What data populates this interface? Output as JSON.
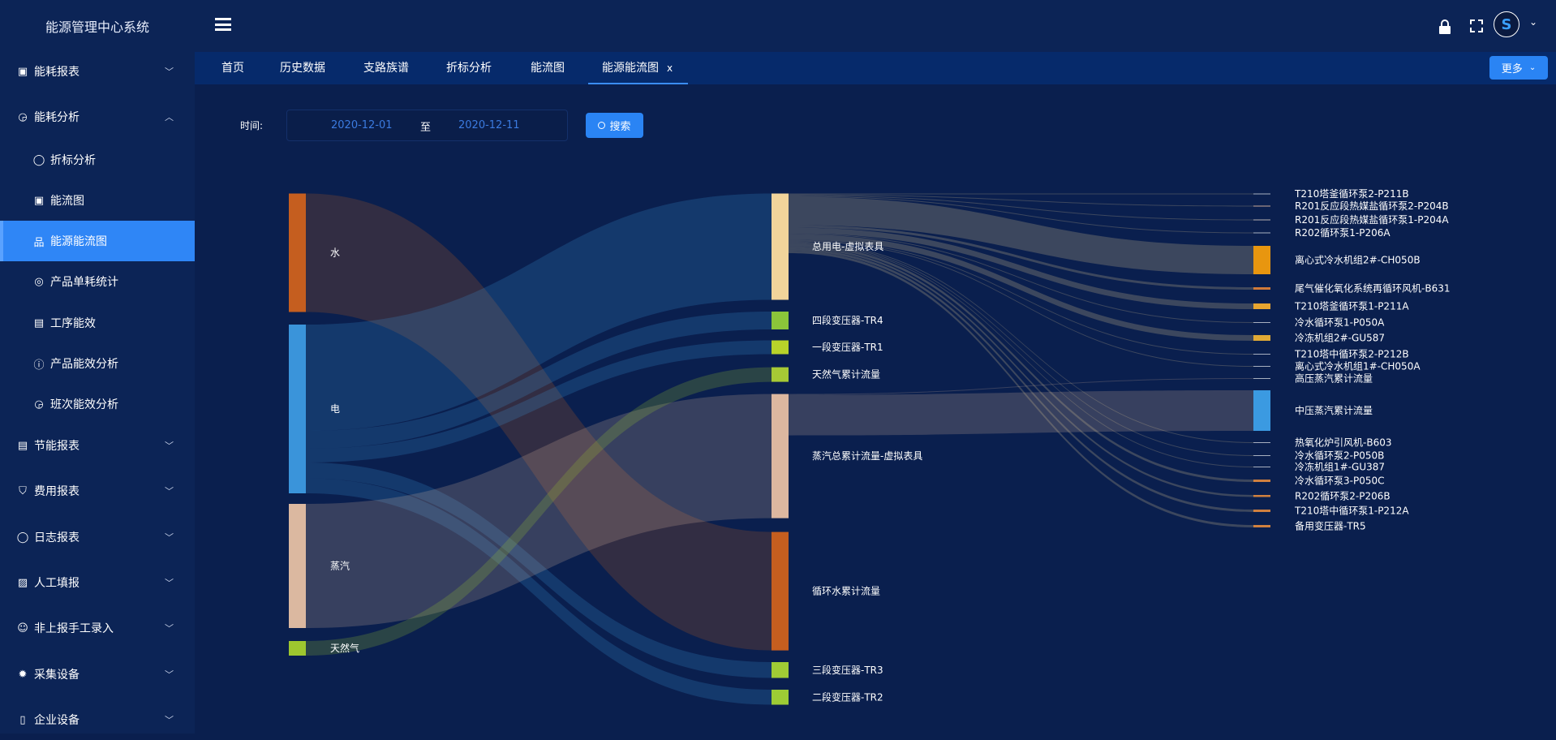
{
  "app_title": "能源管理中心系统",
  "sidebar": {
    "items": [
      {
        "label": "能耗报表",
        "icon": "report-icon",
        "expanded": false
      },
      {
        "label": "能耗分析",
        "icon": "analysis-icon",
        "expanded": true
      },
      {
        "label": "折标分析",
        "icon": "chat-icon"
      },
      {
        "label": "能流图",
        "icon": "calendar-icon"
      },
      {
        "label": "能源能流图",
        "icon": "hierarchy-icon",
        "active": true
      },
      {
        "label": "产品单耗统计",
        "icon": "location-icon"
      },
      {
        "label": "工序能效",
        "icon": "message-icon"
      },
      {
        "label": "产品能效分析",
        "icon": "info-icon"
      },
      {
        "label": "班次能效分析",
        "icon": "analysis-icon"
      },
      {
        "label": "节能报表",
        "icon": "message-icon",
        "expanded": false
      },
      {
        "label": "费用报表",
        "icon": "shield-icon",
        "expanded": false
      },
      {
        "label": "日志报表",
        "icon": "chat-icon",
        "expanded": false
      },
      {
        "label": "人工填报",
        "icon": "image-icon",
        "expanded": false
      },
      {
        "label": "非上报手工录入",
        "icon": "wechat-icon",
        "expanded": false
      },
      {
        "label": "采集设备",
        "icon": "gear-icon",
        "expanded": false
      },
      {
        "label": "企业设备",
        "icon": "phone-icon",
        "expanded": false
      }
    ]
  },
  "header": {
    "menu_icon": "hamburger-icon",
    "lock_icon": "lock-icon",
    "fullscreen_icon": "fullscreen-icon",
    "avatar_letter": "S"
  },
  "tabs": [
    {
      "label": "首页"
    },
    {
      "label": "历史数据"
    },
    {
      "label": "支路族谱"
    },
    {
      "label": "折标分析"
    },
    {
      "label": "能流图"
    },
    {
      "label": "能源能流图",
      "active": true,
      "closable": true
    }
  ],
  "tab_close": "x",
  "more_button": "更多",
  "filter": {
    "time_label": "时间:",
    "start": "2020-12-01",
    "separator": "至",
    "end": "2020-12-11",
    "search_label": "搜索"
  },
  "colors": {
    "accent": "#2a84f4",
    "background": "#0a1f4e"
  },
  "chart_data": {
    "type": "sankey",
    "nodes": [
      {
        "name": "水",
        "color": "#c55e1f"
      },
      {
        "name": "电",
        "color": "#3a94da"
      },
      {
        "name": "蒸汽",
        "color": "#dbb8a0"
      },
      {
        "name": "天然气",
        "color": "#9ec72f"
      },
      {
        "name": "总用电-虚拟表具",
        "color": "#f1d49b"
      },
      {
        "name": "四段变压器-TR4",
        "color": "#8bc53a"
      },
      {
        "name": "一段变压器-TR1",
        "color": "#b8d22a"
      },
      {
        "name": "天然气累计流量",
        "color": "#a6c935"
      },
      {
        "name": "蒸汽总累计流量-虚拟表具",
        "color": "#dcb7a0"
      },
      {
        "name": "循环水累计流量",
        "color": "#c55e1f"
      },
      {
        "name": "三段变压器-TR3",
        "color": "#a0cc35"
      },
      {
        "name": "二段变压器-TR2",
        "color": "#9dcc35"
      },
      {
        "name": "T210塔釜循环泵2-P211B",
        "color": "#a8b0c0"
      },
      {
        "name": "R201反应段热媒盐循环泵2-P204B",
        "color": "#c9a898"
      },
      {
        "name": "R201反应段热媒盐循环泵1-P204A",
        "color": "#b8b0b0"
      },
      {
        "name": "R202循环泵1-P206A",
        "color": "#a8b0c0"
      },
      {
        "name": "离心式冷水机组2#-CH050B",
        "color": "#e8960f"
      },
      {
        "name": "尾气催化氧化系统再循环风机-B631",
        "color": "#d07a3a"
      },
      {
        "name": "T210塔釜循环泵1-P211A",
        "color": "#e8a530"
      },
      {
        "name": "冷水循环泵1-P050A",
        "color": "#a8b0c0"
      },
      {
        "name": "冷冻机组2#-GU587",
        "color": "#e0a935"
      },
      {
        "name": "T210塔中循环泵2-P212B",
        "color": "#a8b0c0"
      },
      {
        "name": "离心式冷水机组1#-CH050A",
        "color": "#a8b0c0"
      },
      {
        "name": "高压蒸汽累计流量",
        "color": "#a8b0c0"
      },
      {
        "name": "中压蒸汽累计流量",
        "color": "#3b9ae1"
      },
      {
        "name": "热氧化炉引风机-B603",
        "color": "#a8b0c0"
      },
      {
        "name": "冷水循环泵2-P050B",
        "color": "#a8b0c0"
      },
      {
        "name": "冷冻机组1#-GU387",
        "color": "#a8b0c0"
      },
      {
        "name": "冷水循环泵3-P050C",
        "color": "#d0803f"
      },
      {
        "name": "R202循环泵2-P206B",
        "color": "#d0803f"
      },
      {
        "name": "T210塔中循环泵1-P212A",
        "color": "#d0803f"
      },
      {
        "name": "备用变压器-TR5",
        "color": "#d0803f"
      }
    ],
    "links": [
      {
        "source": "水",
        "target": "循环水累计流量",
        "value": 146
      },
      {
        "source": "电",
        "target": "总用电-虚拟表具",
        "value": 131
      },
      {
        "source": "电",
        "target": "四段变压器-TR4",
        "value": 22
      },
      {
        "source": "电",
        "target": "一段变压器-TR1",
        "value": 17
      },
      {
        "source": "电",
        "target": "三段变压器-TR3",
        "value": 19.5
      },
      {
        "source": "电",
        "target": "二段变压器-TR2",
        "value": 18.5
      },
      {
        "source": "蒸汽",
        "target": "蒸汽总累计流量-虚拟表具",
        "value": 153
      },
      {
        "source": "天然气",
        "target": "天然气累计流量",
        "value": 18
      },
      {
        "source": "总用电-虚拟表具",
        "target": "T210塔釜循环泵2-P211B",
        "value": 1
      },
      {
        "source": "总用电-虚拟表具",
        "target": "R201反应段热媒盐循环泵2-P204B",
        "value": 1
      },
      {
        "source": "总用电-虚拟表具",
        "target": "R201反应段热媒盐循环泵1-P204A",
        "value": 1
      },
      {
        "source": "总用电-虚拟表具",
        "target": "R202循环泵1-P206A",
        "value": 1
      },
      {
        "source": "总用电-虚拟表具",
        "target": "离心式冷水机组2#-CH050B",
        "value": 35
      },
      {
        "source": "总用电-虚拟表具",
        "target": "尾气催化氧化系统再循环风机-B631",
        "value": 3
      },
      {
        "source": "总用电-虚拟表具",
        "target": "T210塔釜循环泵1-P211A",
        "value": 7
      },
      {
        "source": "总用电-虚拟表具",
        "target": "冷水循环泵1-P050A",
        "value": 1
      },
      {
        "source": "总用电-虚拟表具",
        "target": "冷冻机组2#-GU587",
        "value": 7
      },
      {
        "source": "总用电-虚拟表具",
        "target": "T210塔中循环泵2-P212B",
        "value": 1
      },
      {
        "source": "总用电-虚拟表具",
        "target": "离心式冷水机组1#-CH050A",
        "value": 1
      },
      {
        "source": "蒸汽总累计流量-虚拟表具",
        "target": "高压蒸汽累计流量",
        "value": 1
      },
      {
        "source": "蒸汽总累计流量-虚拟表具",
        "target": "中压蒸汽累计流量",
        "value": 50
      },
      {
        "source": "总用电-虚拟表具",
        "target": "热氧化炉引风机-B603",
        "value": 1
      },
      {
        "source": "总用电-虚拟表具",
        "target": "冷水循环泵2-P050B",
        "value": 1
      },
      {
        "source": "总用电-虚拟表具",
        "target": "冷冻机组1#-GU387",
        "value": 1
      },
      {
        "source": "总用电-虚拟表具",
        "target": "冷水循环泵3-P050C",
        "value": 3
      },
      {
        "source": "总用电-虚拟表具",
        "target": "R202循环泵2-P206B",
        "value": 2.5
      },
      {
        "source": "总用电-虚拟表具",
        "target": "T210塔中循环泵1-P212A",
        "value": 3
      },
      {
        "source": "总用电-虚拟表具",
        "target": "备用变压器-TR5",
        "value": 3
      }
    ]
  }
}
